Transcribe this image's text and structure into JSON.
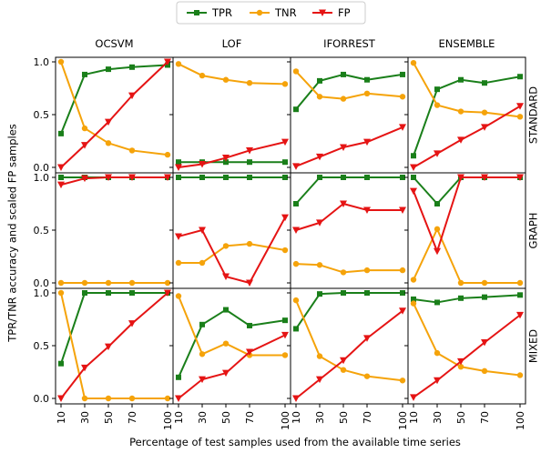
{
  "chart_data": {
    "type": "line",
    "ylabel": "TPR/TNR accuracy and scaled FP samples",
    "xlabel": "Percentage of test samples used from the available time series",
    "x": [
      10,
      30,
      50,
      70,
      100
    ],
    "x_tick_labels": [
      "10",
      "30",
      "50",
      "70",
      "100"
    ],
    "y_tick_labels": [
      "0.0",
      "0.5",
      "1.0"
    ],
    "ylim": [
      0,
      1
    ],
    "legend": {
      "placement": "top-center",
      "entries": [
        "TPR",
        "TNR",
        "FP"
      ]
    },
    "series_styles": [
      {
        "name": "TPR",
        "color": "#1a7f1a",
        "marker": "square"
      },
      {
        "name": "TNR",
        "color": "#f5a30a",
        "marker": "circle"
      },
      {
        "name": "FP",
        "color": "#e51414",
        "marker": "triangle-down"
      }
    ],
    "columns": [
      "OCSVM",
      "LOF",
      "IFORREST",
      "ENSEMBLE"
    ],
    "rows": [
      "STANDARD",
      "GRAPH",
      "MIXED"
    ],
    "panels": [
      {
        "row": "STANDARD",
        "column": "OCSVM",
        "series": [
          {
            "name": "TPR",
            "values": [
              0.32,
              0.88,
              0.93,
              0.95,
              0.97
            ]
          },
          {
            "name": "TNR",
            "values": [
              1.0,
              0.37,
              0.23,
              0.16,
              0.12
            ]
          },
          {
            "name": "FP",
            "values": [
              0.0,
              0.21,
              0.43,
              0.68,
              1.0
            ]
          }
        ]
      },
      {
        "row": "STANDARD",
        "column": "LOF",
        "series": [
          {
            "name": "TPR",
            "values": [
              0.05,
              0.05,
              0.05,
              0.05,
              0.05
            ]
          },
          {
            "name": "TNR",
            "values": [
              0.98,
              0.87,
              0.83,
              0.8,
              0.79
            ]
          },
          {
            "name": "FP",
            "values": [
              0.0,
              0.03,
              0.09,
              0.16,
              0.24
            ]
          }
        ]
      },
      {
        "row": "STANDARD",
        "column": "IFORREST",
        "series": [
          {
            "name": "TPR",
            "values": [
              0.55,
              0.82,
              0.88,
              0.83,
              0.88
            ]
          },
          {
            "name": "TNR",
            "values": [
              0.91,
              0.67,
              0.65,
              0.7,
              0.67
            ]
          },
          {
            "name": "FP",
            "values": [
              0.01,
              0.1,
              0.19,
              0.24,
              0.38
            ]
          }
        ]
      },
      {
        "row": "STANDARD",
        "column": "ENSEMBLE",
        "series": [
          {
            "name": "TPR",
            "values": [
              0.11,
              0.74,
              0.83,
              0.8,
              0.86
            ]
          },
          {
            "name": "TNR",
            "values": [
              0.99,
              0.59,
              0.53,
              0.52,
              0.48
            ]
          },
          {
            "name": "FP",
            "values": [
              0.0,
              0.13,
              0.26,
              0.38,
              0.58
            ]
          }
        ]
      },
      {
        "row": "GRAPH",
        "column": "OCSVM",
        "series": [
          {
            "name": "TPR",
            "values": [
              1.0,
              1.0,
              1.0,
              1.0,
              1.0
            ]
          },
          {
            "name": "TNR",
            "values": [
              0.0,
              0.0,
              0.0,
              0.0,
              0.0
            ]
          },
          {
            "name": "FP",
            "values": [
              0.93,
              0.99,
              1.0,
              1.0,
              1.0
            ]
          }
        ]
      },
      {
        "row": "GRAPH",
        "column": "LOF",
        "series": [
          {
            "name": "TPR",
            "values": [
              1.0,
              1.0,
              1.0,
              1.0,
              1.0
            ]
          },
          {
            "name": "TNR",
            "values": [
              0.19,
              0.19,
              0.35,
              0.37,
              0.31
            ]
          },
          {
            "name": "FP",
            "values": [
              0.44,
              0.5,
              0.06,
              0.0,
              0.62
            ]
          }
        ]
      },
      {
        "row": "GRAPH",
        "column": "IFORREST",
        "series": [
          {
            "name": "TPR",
            "values": [
              0.75,
              1.0,
              1.0,
              1.0,
              1.0
            ]
          },
          {
            "name": "TNR",
            "values": [
              0.18,
              0.17,
              0.1,
              0.12,
              0.12
            ]
          },
          {
            "name": "FP",
            "values": [
              0.5,
              0.57,
              0.75,
              0.69,
              0.69
            ]
          }
        ]
      },
      {
        "row": "GRAPH",
        "column": "ENSEMBLE",
        "series": [
          {
            "name": "TPR",
            "values": [
              1.0,
              0.75,
              1.0,
              1.0,
              1.0
            ]
          },
          {
            "name": "TNR",
            "values": [
              0.03,
              0.51,
              0.0,
              0.0,
              0.0
            ]
          },
          {
            "name": "FP",
            "values": [
              0.87,
              0.3,
              1.0,
              1.0,
              1.0
            ]
          }
        ]
      },
      {
        "row": "MIXED",
        "column": "OCSVM",
        "series": [
          {
            "name": "TPR",
            "values": [
              0.33,
              1.0,
              1.0,
              1.0,
              1.0
            ]
          },
          {
            "name": "TNR",
            "values": [
              1.0,
              0.0,
              0.0,
              0.0,
              0.0
            ]
          },
          {
            "name": "FP",
            "values": [
              0.0,
              0.29,
              0.49,
              0.71,
              1.0
            ]
          }
        ]
      },
      {
        "row": "MIXED",
        "column": "LOF",
        "series": [
          {
            "name": "TPR",
            "values": [
              0.2,
              0.7,
              0.84,
              0.69,
              0.74
            ]
          },
          {
            "name": "TNR",
            "values": [
              0.97,
              0.42,
              0.52,
              0.41,
              0.41
            ]
          },
          {
            "name": "FP",
            "values": [
              0.0,
              0.18,
              0.24,
              0.44,
              0.6
            ]
          }
        ]
      },
      {
        "row": "MIXED",
        "column": "IFORREST",
        "series": [
          {
            "name": "TPR",
            "values": [
              0.66,
              0.99,
              1.0,
              1.0,
              1.0
            ]
          },
          {
            "name": "TNR",
            "values": [
              0.93,
              0.4,
              0.27,
              0.21,
              0.17
            ]
          },
          {
            "name": "FP",
            "values": [
              0.0,
              0.18,
              0.36,
              0.57,
              0.83
            ]
          }
        ]
      },
      {
        "row": "MIXED",
        "column": "ENSEMBLE",
        "series": [
          {
            "name": "TPR",
            "values": [
              0.94,
              0.91,
              0.95,
              0.96,
              0.98
            ]
          },
          {
            "name": "TNR",
            "values": [
              0.9,
              0.43,
              0.3,
              0.26,
              0.22
            ]
          },
          {
            "name": "FP",
            "values": [
              0.01,
              0.17,
              0.35,
              0.53,
              0.79
            ]
          }
        ]
      }
    ]
  }
}
